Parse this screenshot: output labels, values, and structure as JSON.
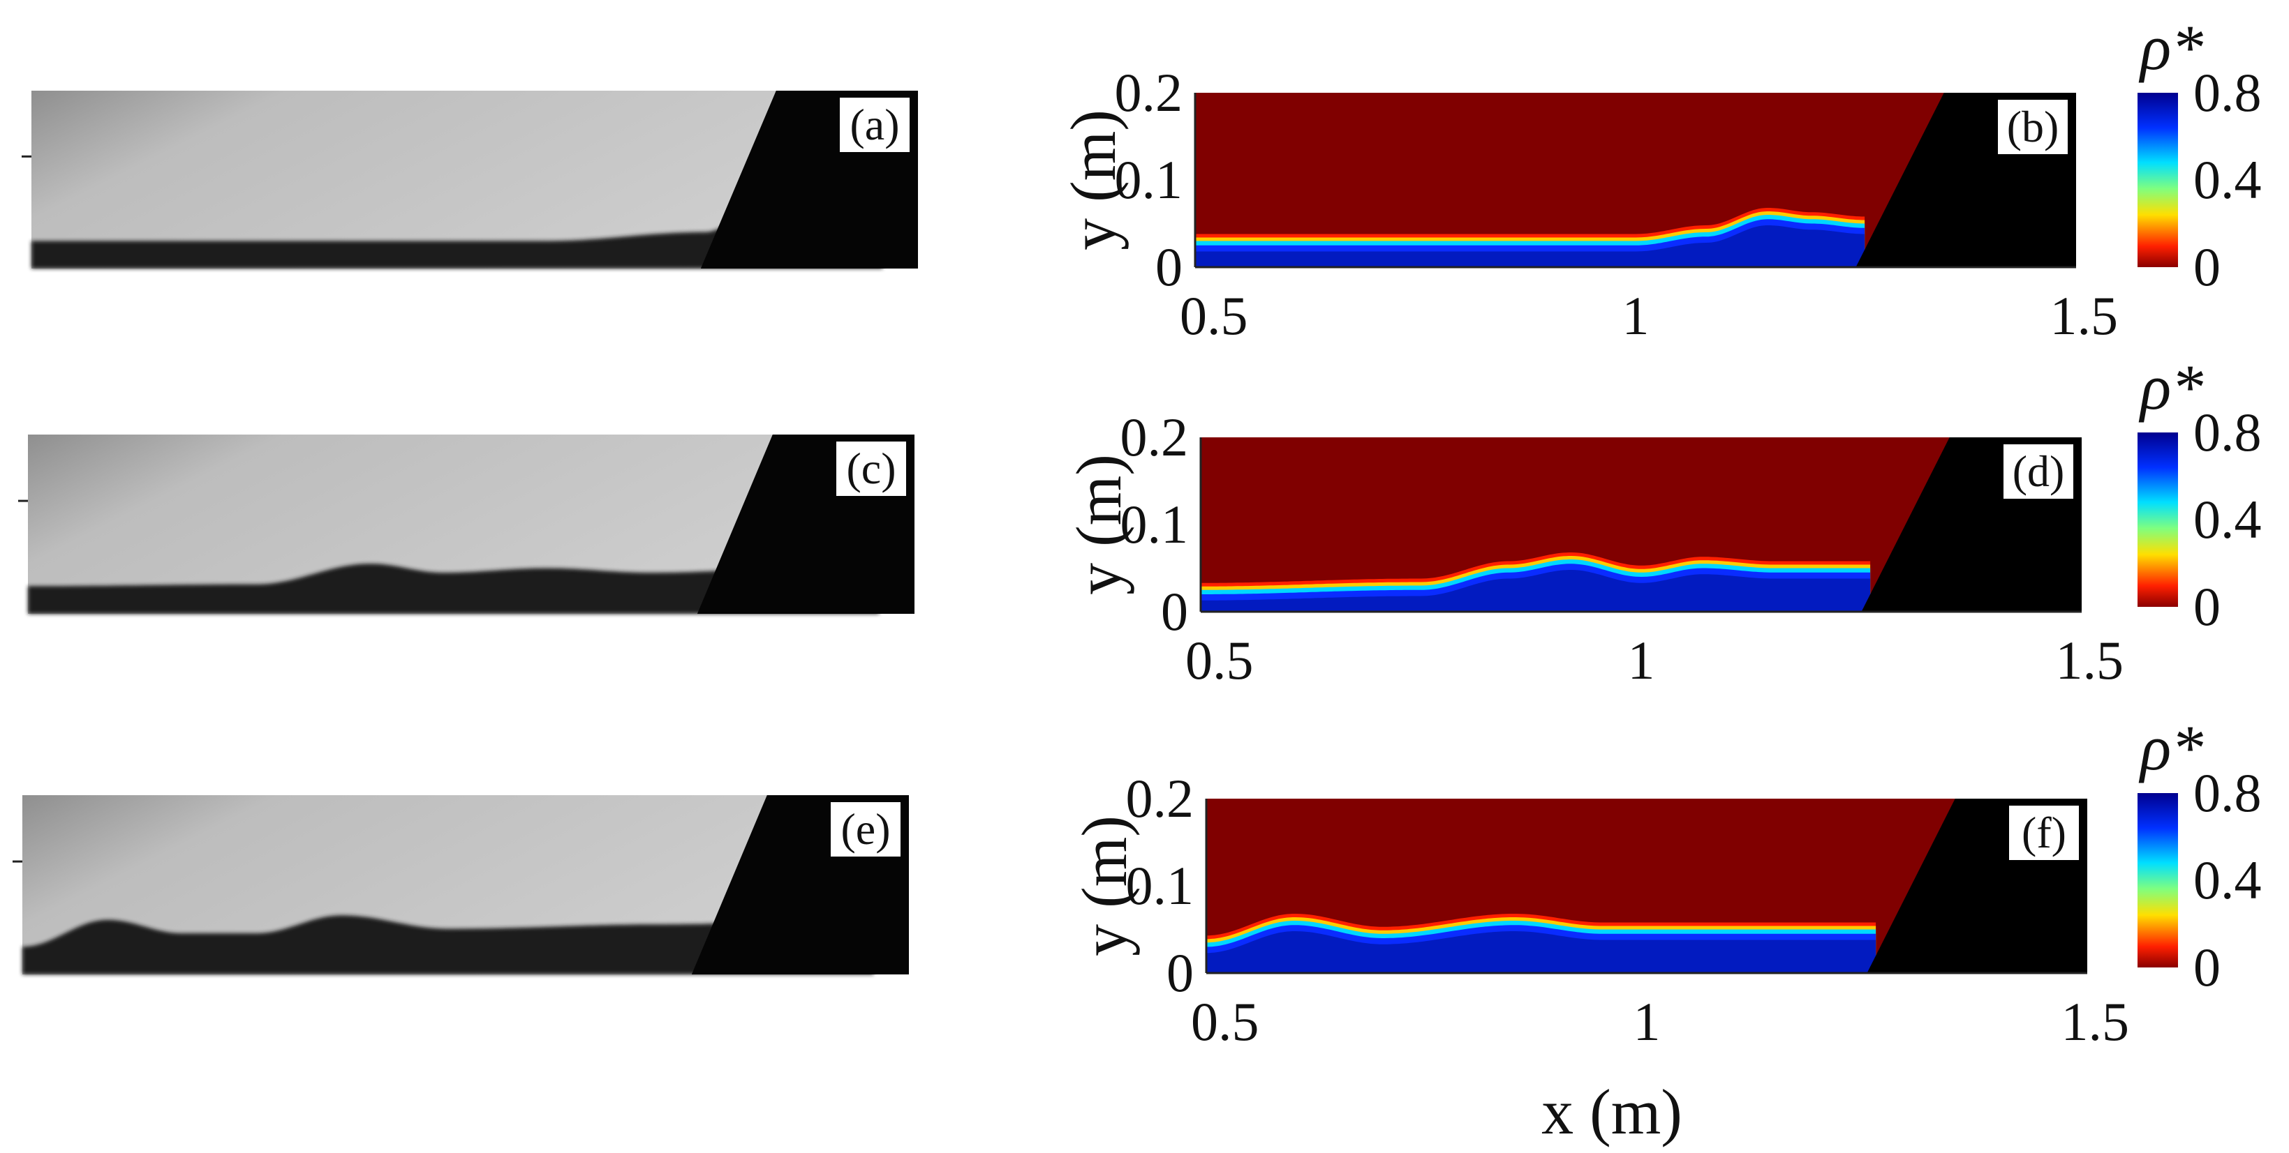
{
  "figure": {
    "photo_panels": [
      {
        "label": "(a)",
        "fronts": [
          {
            "x": 0.0,
            "h": 0.02
          },
          {
            "x": 0.55,
            "h": 0.02
          },
          {
            "x": 0.72,
            "h": 0.03
          },
          {
            "x": 0.78,
            "h": 0.055
          },
          {
            "x": 0.86,
            "h": 0.05
          },
          {
            "x": 0.91,
            "h": 0.06
          }
        ]
      },
      {
        "label": "(c)",
        "fronts": [
          {
            "x": 0.0,
            "h": 0.02
          },
          {
            "x": 0.22,
            "h": 0.022
          },
          {
            "x": 0.33,
            "h": 0.045
          },
          {
            "x": 0.4,
            "h": 0.035
          },
          {
            "x": 0.5,
            "h": 0.04
          },
          {
            "x": 0.6,
            "h": 0.035
          },
          {
            "x": 0.75,
            "h": 0.04
          },
          {
            "x": 0.82,
            "h": 0.04
          }
        ]
      },
      {
        "label": "(e)",
        "fronts": [
          {
            "x": 0.0,
            "h": 0.02
          },
          {
            "x": 0.08,
            "h": 0.05
          },
          {
            "x": 0.15,
            "h": 0.035
          },
          {
            "x": 0.22,
            "h": 0.035
          },
          {
            "x": 0.3,
            "h": 0.055
          },
          {
            "x": 0.4,
            "h": 0.04
          },
          {
            "x": 0.6,
            "h": 0.045
          },
          {
            "x": 0.8,
            "h": 0.05
          }
        ]
      }
    ]
  },
  "chart_data": [
    {
      "type": "heatmap",
      "panel_label": "(b)",
      "xlabel": "",
      "ylabel": "y (m)",
      "xlim": [
        0.5,
        1.5
      ],
      "ylim": [
        0,
        0.2
      ],
      "xticks": [
        "0.5",
        "1",
        "1.5"
      ],
      "yticks": [
        "0",
        "0.1",
        "0.2"
      ],
      "colorbar": {
        "label": "ρ*",
        "ticks": [
          "0",
          "0.4",
          "0.8"
        ],
        "range": [
          0,
          0.8
        ]
      },
      "gate_x_bottom": 1.25,
      "gate_x_top": 1.35,
      "interface": [
        {
          "x": 0.5,
          "y": 0.03
        },
        {
          "x": 1.0,
          "y": 0.03
        },
        {
          "x": 1.08,
          "y": 0.04
        },
        {
          "x": 1.15,
          "y": 0.06
        },
        {
          "x": 1.2,
          "y": 0.055
        },
        {
          "x": 1.26,
          "y": 0.05
        }
      ]
    },
    {
      "type": "heatmap",
      "panel_label": "(d)",
      "xlabel": "",
      "ylabel": "y (m)",
      "xlim": [
        0.5,
        1.5
      ],
      "ylim": [
        0,
        0.2
      ],
      "xticks": [
        "0.5",
        "1",
        "1.5"
      ],
      "yticks": [
        "0",
        "0.1",
        "0.2"
      ],
      "colorbar": {
        "label": "ρ*",
        "ticks": [
          "0",
          "0.4",
          "0.8"
        ],
        "range": [
          0,
          0.8
        ]
      },
      "gate_x_bottom": 1.25,
      "gate_x_top": 1.35,
      "interface": [
        {
          "x": 0.5,
          "y": 0.025
        },
        {
          "x": 0.75,
          "y": 0.03
        },
        {
          "x": 0.85,
          "y": 0.05
        },
        {
          "x": 0.92,
          "y": 0.06
        },
        {
          "x": 1.0,
          "y": 0.045
        },
        {
          "x": 1.07,
          "y": 0.055
        },
        {
          "x": 1.15,
          "y": 0.05
        },
        {
          "x": 1.26,
          "y": 0.05
        }
      ]
    },
    {
      "type": "heatmap",
      "panel_label": "(f)",
      "xlabel": "x (m)",
      "ylabel": "y (m)",
      "xlim": [
        0.5,
        1.5
      ],
      "ylim": [
        0,
        0.2
      ],
      "xticks": [
        "0.5",
        "1",
        "1.5"
      ],
      "yticks": [
        "0",
        "0.1",
        "0.2"
      ],
      "colorbar": {
        "label": "ρ*",
        "ticks": [
          "0",
          "0.4",
          "0.8"
        ],
        "range": [
          0,
          0.8
        ]
      },
      "gate_x_bottom": 1.25,
      "gate_x_top": 1.35,
      "interface": [
        {
          "x": 0.5,
          "y": 0.035
        },
        {
          "x": 0.6,
          "y": 0.06
        },
        {
          "x": 0.7,
          "y": 0.045
        },
        {
          "x": 0.85,
          "y": 0.06
        },
        {
          "x": 0.95,
          "y": 0.05
        },
        {
          "x": 1.05,
          "y": 0.05
        },
        {
          "x": 1.26,
          "y": 0.05
        }
      ]
    }
  ]
}
